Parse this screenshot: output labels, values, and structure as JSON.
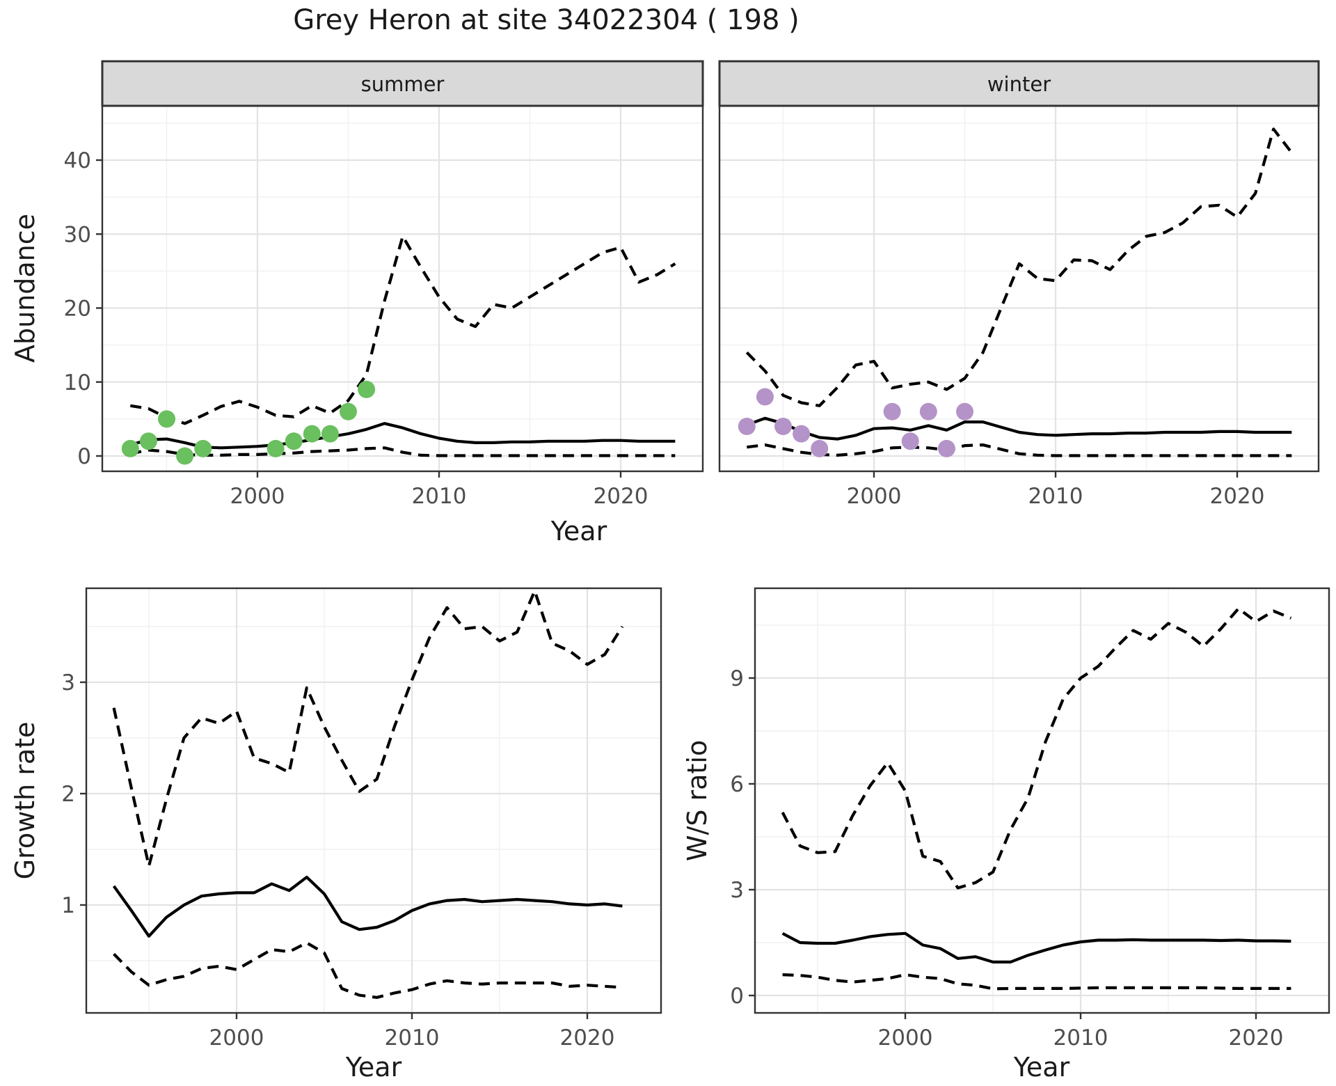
{
  "title": "Grey Heron at site 34022304 ( 198 )",
  "axis_titles": {
    "abundance": "Abundance",
    "growth": "Growth rate",
    "ws": "W/S ratio",
    "year": "Year"
  },
  "facets": {
    "summer": "summer",
    "winter": "winter"
  },
  "colors": {
    "summer_points": "#6abf5e",
    "winter_points": "#b493c8",
    "line": "#000000",
    "strip_bg": "#d9d9d9",
    "panel_border": "#333333",
    "grid_major": "#e3e3e3",
    "grid_minor": "#f1f1f1",
    "tick_text": "#4d4d4d",
    "label_text": "#1a1a1a"
  },
  "chart_data": [
    {
      "type": "line",
      "id": "abundance-summer",
      "facet": "summer",
      "title": "Grey Heron at site 34022304 ( 198 )",
      "xlabel": "Year",
      "ylabel": "Abundance",
      "x": [
        1993,
        1994,
        1995,
        1996,
        1997,
        1998,
        1999,
        2000,
        2001,
        2002,
        2003,
        2004,
        2005,
        2006,
        2007,
        2008,
        2009,
        2010,
        2011,
        2012,
        2013,
        2014,
        2015,
        2016,
        2017,
        2018,
        2019,
        2020,
        2021,
        2022,
        2023
      ],
      "series": [
        {
          "name": "fit",
          "style": "solid",
          "values": [
            1.5,
            2.2,
            2.3,
            1.8,
            1.2,
            1.1,
            1.2,
            1.3,
            1.5,
            1.8,
            2.2,
            2.6,
            3.0,
            3.6,
            4.4,
            3.8,
            3.0,
            2.4,
            2.0,
            1.8,
            1.8,
            1.9,
            1.9,
            2.0,
            2.0,
            2.0,
            2.1,
            2.1,
            2.0,
            2.0,
            2.0
          ]
        },
        {
          "name": "upper_ci",
          "style": "dashed",
          "values": [
            6.8,
            6.4,
            5.2,
            4.4,
            5.5,
            6.7,
            7.4,
            6.6,
            5.5,
            5.3,
            6.8,
            5.8,
            7.5,
            11.0,
            21.0,
            29.7,
            25.5,
            21.5,
            18.5,
            17.5,
            20.5,
            20.0,
            21.5,
            23.0,
            24.5,
            26.0,
            27.5,
            28.2,
            23.5,
            24.5,
            26.0
          ]
        },
        {
          "name": "lower_ci",
          "style": "dashed",
          "values": [
            0.3,
            0.8,
            0.6,
            0.2,
            0.1,
            0.1,
            0.2,
            0.2,
            0.3,
            0.4,
            0.6,
            0.7,
            0.8,
            1.0,
            1.1,
            0.5,
            0.1,
            0.05,
            0.05,
            0.05,
            0.05,
            0.05,
            0.05,
            0.05,
            0.05,
            0.05,
            0.05,
            0.05,
            0.05,
            0.05,
            0.05
          ]
        }
      ],
      "points": {
        "name": "observed",
        "x": [
          1993,
          1994,
          1995,
          1996,
          1997,
          2001,
          2002,
          2003,
          2004,
          2005,
          2006
        ],
        "y": [
          1,
          2,
          5,
          0,
          1,
          1,
          2,
          3,
          3,
          6,
          9
        ],
        "color": "#6abf5e"
      },
      "xticks": [
        2000,
        2010,
        2020
      ],
      "xminor": [
        1995,
        2005,
        2015
      ],
      "yticks": [
        0,
        10,
        20,
        30,
        40
      ],
      "yminor": [
        5,
        15,
        25,
        35,
        45
      ],
      "ylim": [
        -2.1,
        47.3
      ],
      "xlim": [
        1991.5,
        2024.5
      ],
      "grid": true,
      "legend": "none"
    },
    {
      "type": "line",
      "id": "abundance-winter",
      "facet": "winter",
      "xlabel": "Year",
      "ylabel": "Abundance",
      "x": [
        1993,
        1994,
        1995,
        1996,
        1997,
        1998,
        1999,
        2000,
        2001,
        2002,
        2003,
        2004,
        2005,
        2006,
        2007,
        2008,
        2009,
        2010,
        2011,
        2012,
        2013,
        2014,
        2015,
        2016,
        2017,
        2018,
        2019,
        2020,
        2021,
        2022,
        2023
      ],
      "series": [
        {
          "name": "fit",
          "style": "solid",
          "values": [
            4.2,
            5.1,
            4.4,
            3.3,
            2.5,
            2.3,
            2.8,
            3.7,
            3.8,
            3.5,
            4.1,
            3.5,
            4.6,
            4.6,
            3.9,
            3.2,
            2.9,
            2.8,
            2.9,
            3.0,
            3.0,
            3.1,
            3.1,
            3.2,
            3.2,
            3.2,
            3.3,
            3.3,
            3.2,
            3.2,
            3.2
          ]
        },
        {
          "name": "upper_ci",
          "style": "dashed",
          "values": [
            14.0,
            11.5,
            8.2,
            7.2,
            6.8,
            9.3,
            12.3,
            12.8,
            9.2,
            9.7,
            10.0,
            9.0,
            10.5,
            14.0,
            20.0,
            26.0,
            24.0,
            23.7,
            26.5,
            26.4,
            25.2,
            27.8,
            29.7,
            30.2,
            31.5,
            33.7,
            33.9,
            32.3,
            35.5,
            44.2,
            41.0
          ]
        },
        {
          "name": "lower_ci",
          "style": "dashed",
          "values": [
            1.2,
            1.5,
            1.0,
            0.5,
            0.2,
            0.1,
            0.3,
            0.6,
            1.1,
            1.2,
            1.1,
            0.8,
            1.4,
            1.5,
            0.9,
            0.3,
            0.1,
            0.05,
            0.05,
            0.05,
            0.05,
            0.05,
            0.05,
            0.05,
            0.05,
            0.05,
            0.05,
            0.05,
            0.05,
            0.05,
            0.05
          ]
        }
      ],
      "points": {
        "name": "observed",
        "x": [
          1993,
          1994,
          1995,
          1996,
          1997,
          2001,
          2002,
          2003,
          2004,
          2005
        ],
        "y": [
          4,
          8,
          4,
          3,
          1,
          6,
          2,
          6,
          1,
          6
        ],
        "color": "#b493c8"
      },
      "xticks": [
        2000,
        2010,
        2020
      ],
      "xminor": [
        1995,
        2005,
        2015
      ],
      "yticks": [
        0,
        10,
        20,
        30,
        40
      ],
      "yminor": [
        5,
        15,
        25,
        35,
        45
      ],
      "ylim": [
        -2.1,
        47.3
      ],
      "xlim": [
        1991.5,
        2024.5
      ],
      "grid": true,
      "legend": "none"
    },
    {
      "type": "line",
      "id": "growth-rate",
      "xlabel": "Year",
      "ylabel": "Growth rate",
      "x": [
        1993,
        1994,
        1995,
        1996,
        1997,
        1998,
        1999,
        2000,
        2001,
        2002,
        2003,
        2004,
        2005,
        2006,
        2007,
        2008,
        2009,
        2010,
        2011,
        2012,
        2013,
        2014,
        2015,
        2016,
        2017,
        2018,
        2019,
        2020,
        2021,
        2022
      ],
      "series": [
        {
          "name": "fit",
          "style": "solid",
          "values": [
            1.17,
            0.95,
            0.72,
            0.89,
            1.0,
            1.08,
            1.1,
            1.11,
            1.11,
            1.19,
            1.13,
            1.25,
            1.1,
            0.85,
            0.78,
            0.8,
            0.86,
            0.95,
            1.01,
            1.04,
            1.05,
            1.03,
            1.04,
            1.05,
            1.04,
            1.03,
            1.01,
            1.0,
            1.01,
            0.99
          ]
        },
        {
          "name": "upper_ci",
          "style": "dashed",
          "values": [
            2.77,
            2.05,
            1.35,
            1.95,
            2.5,
            2.68,
            2.63,
            2.74,
            2.32,
            2.27,
            2.19,
            2.95,
            2.6,
            2.3,
            2.02,
            2.13,
            2.6,
            3.02,
            3.4,
            3.67,
            3.48,
            3.5,
            3.37,
            3.45,
            3.82,
            3.35,
            3.28,
            3.16,
            3.25,
            3.5
          ]
        },
        {
          "name": "lower_ci",
          "style": "dashed",
          "values": [
            0.56,
            0.4,
            0.28,
            0.33,
            0.36,
            0.43,
            0.45,
            0.42,
            0.51,
            0.6,
            0.58,
            0.66,
            0.57,
            0.25,
            0.19,
            0.17,
            0.21,
            0.24,
            0.29,
            0.32,
            0.3,
            0.29,
            0.3,
            0.3,
            0.3,
            0.3,
            0.27,
            0.28,
            0.27,
            0.26
          ]
        }
      ],
      "xticks": [
        2000,
        2010,
        2020
      ],
      "xminor": [
        1995,
        2005,
        2015
      ],
      "yticks": [
        1,
        2,
        3
      ],
      "yminor": [
        0.5,
        1.5,
        2.5,
        3.5
      ],
      "ylim": [
        0.03,
        3.84
      ],
      "xlim": [
        1991.4,
        2024.2
      ],
      "grid": true,
      "legend": "none"
    },
    {
      "type": "line",
      "id": "ws-ratio",
      "xlabel": "Year",
      "ylabel": "W/S ratio",
      "x": [
        1993,
        1994,
        1995,
        1996,
        1997,
        1998,
        1999,
        2000,
        2001,
        2002,
        2003,
        2004,
        2005,
        2006,
        2007,
        2008,
        2009,
        2010,
        2011,
        2012,
        2013,
        2014,
        2015,
        2016,
        2017,
        2018,
        2019,
        2020,
        2021,
        2022
      ],
      "series": [
        {
          "name": "fit",
          "style": "solid",
          "values": [
            1.76,
            1.5,
            1.48,
            1.48,
            1.57,
            1.67,
            1.73,
            1.76,
            1.43,
            1.33,
            1.05,
            1.1,
            0.95,
            0.95,
            1.14,
            1.29,
            1.43,
            1.52,
            1.57,
            1.57,
            1.58,
            1.57,
            1.57,
            1.57,
            1.57,
            1.56,
            1.57,
            1.55,
            1.55,
            1.54
          ]
        },
        {
          "name": "upper_ci",
          "style": "dashed",
          "values": [
            5.19,
            4.24,
            4.05,
            4.08,
            5.1,
            5.95,
            6.6,
            5.8,
            3.95,
            3.8,
            3.05,
            3.2,
            3.5,
            4.7,
            5.6,
            7.2,
            8.4,
            9.0,
            9.33,
            9.86,
            10.35,
            10.1,
            10.55,
            10.3,
            9.9,
            10.4,
            10.97,
            10.6,
            10.9,
            10.7
          ]
        },
        {
          "name": "lower_ci",
          "style": "dashed",
          "values": [
            0.59,
            0.57,
            0.52,
            0.43,
            0.38,
            0.43,
            0.48,
            0.59,
            0.52,
            0.48,
            0.33,
            0.29,
            0.19,
            0.2,
            0.2,
            0.2,
            0.2,
            0.21,
            0.22,
            0.22,
            0.22,
            0.22,
            0.22,
            0.22,
            0.22,
            0.21,
            0.2,
            0.2,
            0.2,
            0.2
          ]
        }
      ],
      "xticks": [
        2000,
        2010,
        2020
      ],
      "xminor": [
        1995,
        2005,
        2015
      ],
      "yticks": [
        0,
        3,
        6,
        9
      ],
      "yminor": [
        1.5,
        4.5,
        7.5,
        10.5
      ],
      "ylim": [
        -0.49,
        11.54
      ],
      "xlim": [
        1991.4,
        2024.2
      ],
      "grid": true,
      "legend": "none"
    }
  ]
}
